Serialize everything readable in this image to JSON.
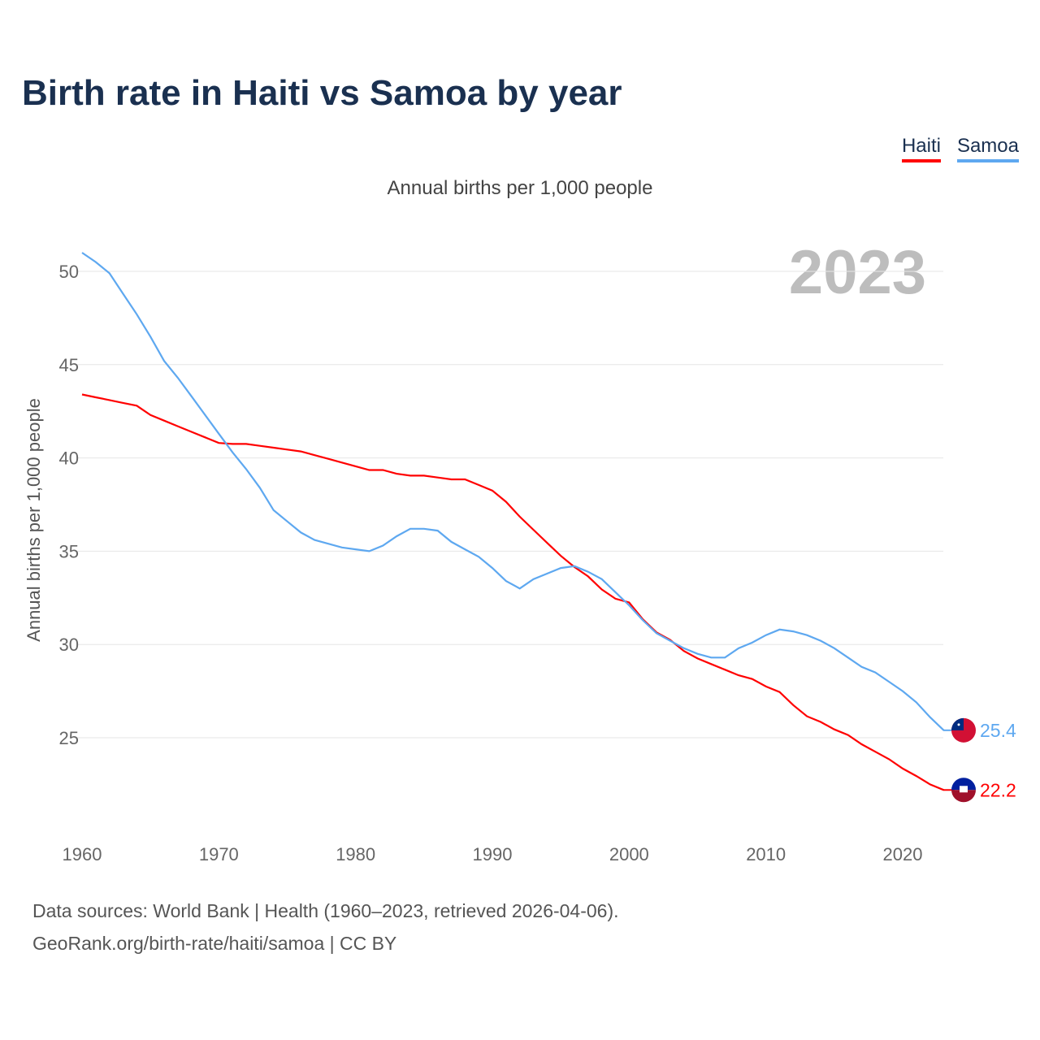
{
  "chart_data": {
    "type": "line",
    "title": "Birth rate in Haiti vs Samoa by year",
    "subtitle": "Annual births per 1,000 people",
    "ylabel": "Annual births per 1,000 people",
    "xlabel": "",
    "xlim": [
      1960,
      2023
    ],
    "ylim": [
      20,
      52
    ],
    "xticks": [
      1960,
      1970,
      1980,
      1990,
      2000,
      2010,
      2020
    ],
    "yticks": [
      25,
      30,
      35,
      40,
      45,
      50
    ],
    "grid": true,
    "legend_position": "top-right",
    "year_label": "2023",
    "x": [
      1960,
      1961,
      1962,
      1963,
      1964,
      1965,
      1966,
      1967,
      1968,
      1969,
      1970,
      1971,
      1972,
      1973,
      1974,
      1975,
      1976,
      1977,
      1978,
      1979,
      1980,
      1981,
      1982,
      1983,
      1984,
      1985,
      1986,
      1987,
      1988,
      1989,
      1990,
      1991,
      1992,
      1993,
      1994,
      1995,
      1996,
      1997,
      1998,
      1999,
      2000,
      2001,
      2002,
      2003,
      2004,
      2005,
      2006,
      2007,
      2008,
      2009,
      2010,
      2011,
      2012,
      2013,
      2014,
      2015,
      2016,
      2017,
      2018,
      2019,
      2020,
      2021,
      2022,
      2023
    ],
    "series": [
      {
        "name": "Haiti",
        "color": "#ff0000",
        "end_label": "22.2",
        "values": [
          43.4,
          43.25,
          43.1,
          42.95,
          42.8,
          42.3,
          42.0,
          41.7,
          41.4,
          41.1,
          40.8,
          40.75,
          40.75,
          40.65,
          40.55,
          40.45,
          40.35,
          40.15,
          39.95,
          39.75,
          39.55,
          39.35,
          39.35,
          39.15,
          39.05,
          39.05,
          38.95,
          38.85,
          38.85,
          38.55,
          38.25,
          37.65,
          36.85,
          36.15,
          35.45,
          34.75,
          34.15,
          33.65,
          32.95,
          32.45,
          32.25,
          31.35,
          30.65,
          30.25,
          29.65,
          29.25,
          28.95,
          28.65,
          28.35,
          28.15,
          27.75,
          27.45,
          26.75,
          26.15,
          25.85,
          25.45,
          25.15,
          24.65,
          24.25,
          23.85,
          23.35,
          22.95,
          22.5,
          22.2
        ]
      },
      {
        "name": "Samoa",
        "color": "#5ea8f0",
        "end_label": "25.4",
        "values": [
          51.0,
          50.5,
          49.9,
          48.8,
          47.7,
          46.5,
          45.2,
          44.3,
          43.3,
          42.3,
          41.3,
          40.3,
          39.4,
          38.4,
          37.2,
          36.6,
          36.0,
          35.6,
          35.4,
          35.2,
          35.1,
          35.0,
          35.3,
          35.8,
          36.2,
          36.2,
          36.1,
          35.5,
          35.1,
          34.7,
          34.1,
          33.4,
          33.0,
          33.5,
          33.8,
          34.1,
          34.2,
          33.9,
          33.5,
          32.8,
          32.1,
          31.3,
          30.6,
          30.2,
          29.8,
          29.5,
          29.3,
          29.3,
          29.8,
          30.1,
          30.5,
          30.8,
          30.7,
          30.5,
          30.2,
          29.8,
          29.3,
          28.8,
          28.5,
          28.0,
          27.5,
          26.9,
          26.1,
          25.4
        ]
      }
    ]
  },
  "source_line1": "Data sources: World Bank | Health (1960–2023, retrieved 2026-04-06).",
  "source_line2": "GeoRank.org/birth-rate/haiti/samoa | CC BY"
}
